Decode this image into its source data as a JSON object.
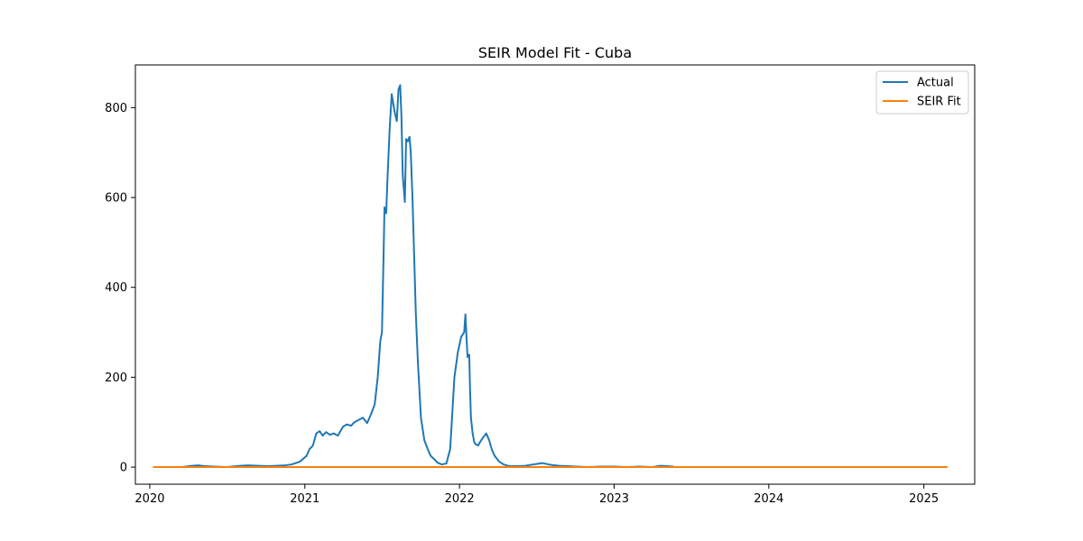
{
  "chart_data": {
    "type": "line",
    "title": "SEIR Model Fit - Cuba",
    "xlabel": "",
    "ylabel": "",
    "x_axis_type": "date",
    "xlim": [
      "2019-11-28",
      "2025-05-01"
    ],
    "ylim": [
      -38,
      895
    ],
    "x_ticks": [
      "2020-01-01",
      "2021-01-01",
      "2022-01-01",
      "2023-01-01",
      "2024-01-01",
      "2025-01-01"
    ],
    "x_tick_labels": [
      "2020",
      "2021",
      "2022",
      "2023",
      "2024",
      "2025"
    ],
    "y_ticks": [
      0,
      200,
      400,
      600,
      800
    ],
    "y_tick_labels": [
      "0",
      "200",
      "400",
      "600",
      "800"
    ],
    "grid": false,
    "legend": {
      "position": "top-right",
      "entries": [
        "Actual",
        "SEIR Fit"
      ]
    },
    "colors": {
      "Actual": "#1f77b4",
      "SEIR Fit": "#ff7f0e"
    },
    "series": [
      {
        "name": "Actual",
        "x": [
          "2020-01-11",
          "2020-03-15",
          "2020-04-10",
          "2020-04-25",
          "2020-05-10",
          "2020-06-01",
          "2020-07-01",
          "2020-08-01",
          "2020-08-20",
          "2020-09-15",
          "2020-10-05",
          "2020-10-25",
          "2020-11-15",
          "2020-12-01",
          "2020-12-20",
          "2021-01-05",
          "2021-01-12",
          "2021-01-20",
          "2021-01-28",
          "2021-02-05",
          "2021-02-12",
          "2021-02-20",
          "2021-03-01",
          "2021-03-10",
          "2021-03-20",
          "2021-04-01",
          "2021-04-10",
          "2021-04-20",
          "2021-04-28",
          "2021-05-08",
          "2021-05-18",
          "2021-05-28",
          "2021-06-05",
          "2021-06-15",
          "2021-06-22",
          "2021-06-28",
          "2021-07-02",
          "2021-07-06",
          "2021-07-08",
          "2021-07-12",
          "2021-07-15",
          "2021-07-20",
          "2021-07-25",
          "2021-08-01",
          "2021-08-06",
          "2021-08-10",
          "2021-08-14",
          "2021-08-17",
          "2021-08-20",
          "2021-08-25",
          "2021-08-28",
          "2021-09-01",
          "2021-09-05",
          "2021-09-08",
          "2021-09-12",
          "2021-09-16",
          "2021-09-20",
          "2021-09-25",
          "2021-10-02",
          "2021-10-10",
          "2021-10-18",
          "2021-10-25",
          "2021-11-02",
          "2021-11-10",
          "2021-11-20",
          "2021-12-01",
          "2021-12-10",
          "2021-12-20",
          "2021-12-28",
          "2022-01-05",
          "2022-01-12",
          "2022-01-15",
          "2022-01-18",
          "2022-01-20",
          "2022-01-24",
          "2022-01-26",
          "2022-01-28",
          "2022-02-01",
          "2022-02-05",
          "2022-02-07",
          "2022-02-10",
          "2022-02-14",
          "2022-02-18",
          "2022-02-25",
          "2022-03-05",
          "2022-03-12",
          "2022-03-18",
          "2022-03-25",
          "2022-04-05",
          "2022-04-15",
          "2022-04-25",
          "2022-05-05",
          "2022-05-20",
          "2022-06-05",
          "2022-06-25",
          "2022-07-15",
          "2022-08-05",
          "2022-08-25",
          "2022-09-15",
          "2022-10-05",
          "2022-11-01",
          "2022-12-01",
          "2023-01-01",
          "2023-02-01",
          "2023-03-01",
          "2023-04-01",
          "2023-04-20",
          "2023-05-10",
          "2023-05-20"
        ],
        "y": [
          0,
          0,
          3,
          4,
          2,
          1,
          0,
          3,
          4,
          3,
          2,
          3,
          4,
          6,
          12,
          25,
          40,
          48,
          75,
          80,
          70,
          78,
          72,
          75,
          70,
          90,
          95,
          92,
          100,
          105,
          110,
          98,
          115,
          140,
          200,
          280,
          300,
          480,
          578,
          565,
          640,
          750,
          830,
          790,
          770,
          840,
          850,
          780,
          650,
          590,
          730,
          725,
          735,
          700,
          600,
          470,
          340,
          230,
          110,
          60,
          40,
          25,
          18,
          10,
          6,
          8,
          40,
          200,
          255,
          290,
          300,
          340,
          280,
          245,
          250,
          170,
          110,
          75,
          55,
          52,
          50,
          48,
          55,
          65,
          75,
          60,
          40,
          25,
          12,
          6,
          3,
          2,
          2,
          3,
          6,
          9,
          5,
          3,
          2,
          1,
          0,
          1,
          1,
          0,
          1,
          0,
          3,
          2,
          1
        ]
      },
      {
        "name": "SEIR Fit",
        "x": [
          "2020-01-11",
          "2025-02-24"
        ],
        "y": [
          0,
          0
        ]
      }
    ]
  }
}
